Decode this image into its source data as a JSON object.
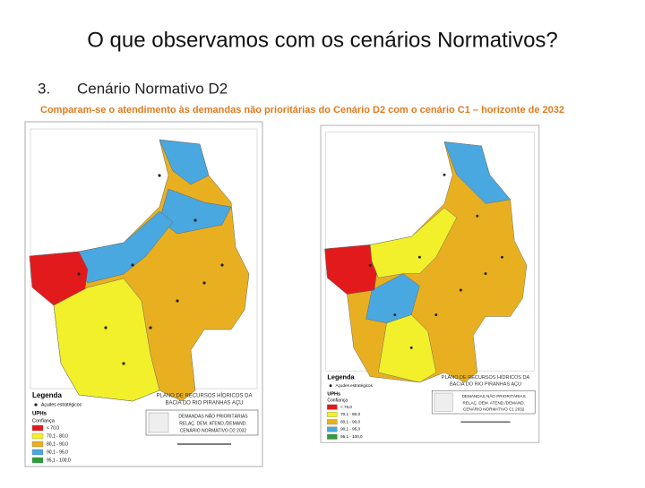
{
  "title": "O que observamos com os cenários Normativos?",
  "item": {
    "number": "3.",
    "text": "Cenário Normativo D2"
  },
  "subtitle": "Comparam-se o atendimento às demandas não prioritárias do Cenário D2 com o cenário C1 – horizonte de 2032",
  "maps": [
    {
      "legend_title": "Legenda",
      "point_legend": "Açudes estratégicos",
      "uph_label": "UPHs",
      "confidence_label": "Confiança",
      "classes": [
        "< 70,0",
        "70,1 - 80,0",
        "80,1 - 90,0",
        "90,1 - 95,0",
        "95,1 - 100,0"
      ],
      "plan_title": [
        "PLANO DE RECURSOS HÍDRICOS DA",
        "BACIA DO RIO PIRANHAS AÇU"
      ],
      "map_title": [
        "DEMANDAS NÃO PRIORITÁRIAS",
        "RELAÇ. DEM. ATEND./DEMAND.",
        "CENÁRIO NORMATIVO D2 2032"
      ]
    },
    {
      "legend_title": "Legenda",
      "point_legend": "Açudes estratégicos",
      "uph_label": "UPHs",
      "confidence_label": "Confiança",
      "classes": [
        "< 70,0",
        "70,1 - 80,0",
        "80,1 - 90,0",
        "90,1 - 95,0",
        "95,1 - 100,0"
      ],
      "plan_title": [
        "PLANO DE RECURSOS HÍDRICOS DA",
        "BACIA DO RIO PIRANHAS AÇU"
      ],
      "map_title": [
        "DEMANDAS NÃO PRIORITÁRIAS",
        "RELAÇ. DEM. ATEND./DEMAND.",
        "CENÁRIO NORMATIVO C1 2032"
      ]
    }
  ]
}
